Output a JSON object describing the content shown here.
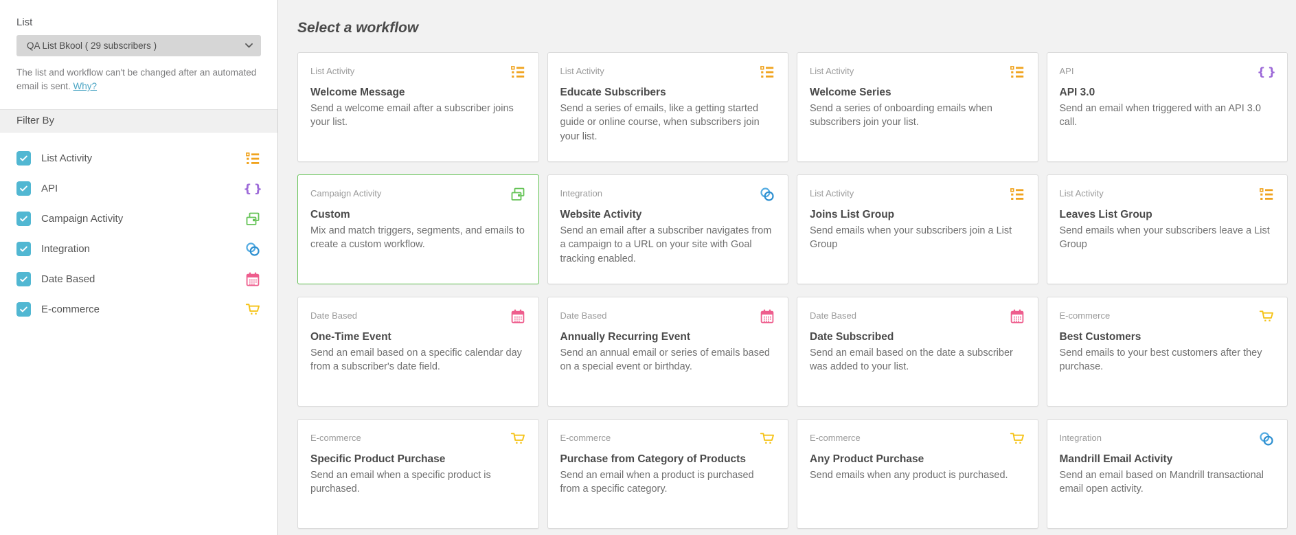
{
  "colors": {
    "checkbox_teal": "#51b7d2",
    "link_teal": "#4ba5c4",
    "list_activity_orange": "#f0a31e",
    "api_purple": "#9d6ad8",
    "campaign_green": "#64c355",
    "integration_blue_dark": "#2d8fd0",
    "integration_blue_light": "#55ace2",
    "date_pink": "#ee5d8d",
    "ecommerce_yellow": "#f5c216",
    "selected_card_border": "#64c355"
  },
  "sidebar": {
    "list_label": "List",
    "list_dropdown_value": "QA List Bkool ( 29 subscribers )",
    "helper_text": "The list and workflow can't be changed after an automated email is sent. ",
    "helper_link": "Why?",
    "filter_header": "Filter By",
    "filters": [
      {
        "label": "List Activity",
        "checked": true,
        "icon": "list-activity-icon"
      },
      {
        "label": "API",
        "checked": true,
        "icon": "api-icon"
      },
      {
        "label": "Campaign Activity",
        "checked": true,
        "icon": "campaign-activity-icon"
      },
      {
        "label": "Integration",
        "checked": true,
        "icon": "integration-icon"
      },
      {
        "label": "Date Based",
        "checked": true,
        "icon": "date-based-icon"
      },
      {
        "label": "E-commerce",
        "checked": true,
        "icon": "e-commerce-icon"
      }
    ]
  },
  "main": {
    "title": "Select a workflow",
    "cards": [
      {
        "category": "List Activity",
        "title": "Welcome Message",
        "description": "Send a welcome email after a subscriber joins your list.",
        "icon": "list-activity-icon",
        "selected": false
      },
      {
        "category": "List Activity",
        "title": "Educate Subscribers",
        "description": "Send a series of emails, like a getting started guide or online course, when subscribers join your list.",
        "icon": "list-activity-icon",
        "selected": false
      },
      {
        "category": "List Activity",
        "title": "Welcome Series",
        "description": "Send a series of onboarding emails when subscribers join your list.",
        "icon": "list-activity-icon",
        "selected": false
      },
      {
        "category": "API",
        "title": "API 3.0",
        "description": "Send an email when triggered with an API 3.0 call.",
        "icon": "api-icon",
        "selected": false
      },
      {
        "category": "Campaign Activity",
        "title": "Custom",
        "description": "Mix and match triggers, segments, and emails to create a custom workflow.",
        "icon": "campaign-activity-icon",
        "selected": true
      },
      {
        "category": "Integration",
        "title": "Website Activity",
        "description": "Send an email after a subscriber navigates from a campaign to a URL on your site with Goal tracking enabled.",
        "icon": "integration-icon",
        "selected": false
      },
      {
        "category": "List Activity",
        "title": "Joins List Group",
        "description": "Send emails when your subscribers join a List Group",
        "icon": "list-activity-icon",
        "selected": false
      },
      {
        "category": "List Activity",
        "title": "Leaves List Group",
        "description": "Send emails when your subscribers leave a List Group",
        "icon": "list-activity-icon",
        "selected": false
      },
      {
        "category": "Date Based",
        "title": "One-Time Event",
        "description": "Send an email based on a specific calendar day from a subscriber's date field.",
        "icon": "date-based-icon",
        "selected": false
      },
      {
        "category": "Date Based",
        "title": "Annually Recurring Event",
        "description": "Send an annual email or series of emails based on a special event or birthday.",
        "icon": "date-based-icon",
        "selected": false
      },
      {
        "category": "Date Based",
        "title": "Date Subscribed",
        "description": "Send an email based on the date a subscriber was added to your list.",
        "icon": "date-based-icon",
        "selected": false
      },
      {
        "category": "E-commerce",
        "title": "Best Customers",
        "description": "Send emails to your best customers after they purchase.",
        "icon": "e-commerce-icon",
        "selected": false
      },
      {
        "category": "E-commerce",
        "title": "Specific Product Purchase",
        "description": "Send an email when a specific product is purchased.",
        "icon": "e-commerce-icon",
        "selected": false
      },
      {
        "category": "E-commerce",
        "title": "Purchase from Category of Products",
        "description": "Send an email when a product is purchased from a specific category.",
        "icon": "e-commerce-icon",
        "selected": false
      },
      {
        "category": "E-commerce",
        "title": "Any Product Purchase",
        "description": "Send emails when any product is purchased.",
        "icon": "e-commerce-icon",
        "selected": false
      },
      {
        "category": "Integration",
        "title": "Mandrill Email Activity",
        "description": "Send an email based on Mandrill transactional email open activity.",
        "icon": "integration-icon",
        "selected": false
      }
    ]
  }
}
